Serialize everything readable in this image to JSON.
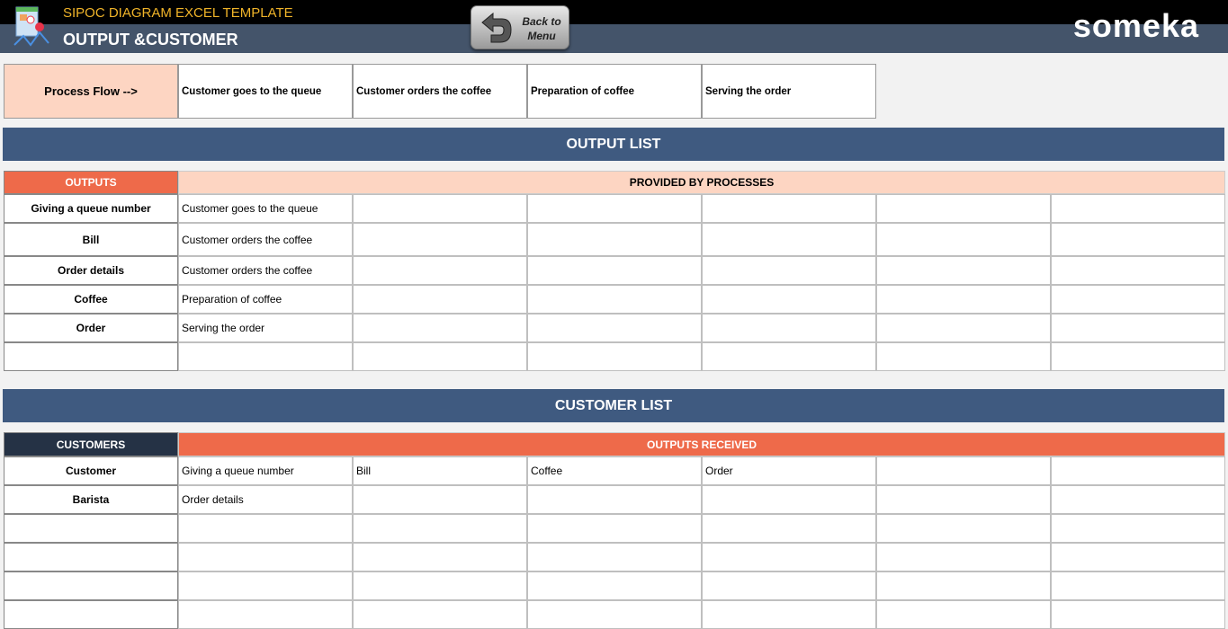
{
  "header": {
    "subtitle": "SIPOC DIAGRAM EXCEL TEMPLATE",
    "title": "OUTPUT &CUSTOMER",
    "back_button": "Back to Menu",
    "brand": "someka"
  },
  "process_flow": {
    "label": "Process Flow -->",
    "steps": [
      "Customer goes to the queue",
      "Customer orders the coffee",
      "Preparation of coffee",
      "Serving the order"
    ]
  },
  "output_list": {
    "title": "OUTPUT LIST",
    "col_header": "OUTPUTS",
    "group_header": "PROVIDED BY PROCESSES",
    "rows": [
      [
        "Giving a queue number",
        "Customer goes to the queue"
      ],
      [
        "Bill",
        "Customer orders the coffee"
      ],
      [
        "Order details",
        "Customer orders the coffee"
      ],
      [
        "Coffee",
        "Preparation of coffee"
      ],
      [
        "Order",
        "Serving the order"
      ],
      [
        ""
      ]
    ]
  },
  "customer_list": {
    "title": "CUSTOMER LIST",
    "col_header": "CUSTOMERS",
    "group_header": "OUTPUTS RECEIVED",
    "rows": [
      [
        "Customer",
        "Giving a queue number",
        "Bill",
        "Coffee",
        "Order"
      ],
      [
        "Barista",
        "Order details"
      ],
      [
        ""
      ],
      [
        ""
      ],
      [
        ""
      ],
      [
        ""
      ]
    ]
  },
  "colors": {
    "header_dark": "#44546a",
    "section": "#3f5a80",
    "accent": "#ee6a4a",
    "peach": "#fdd5c2",
    "navy": "#253245"
  }
}
